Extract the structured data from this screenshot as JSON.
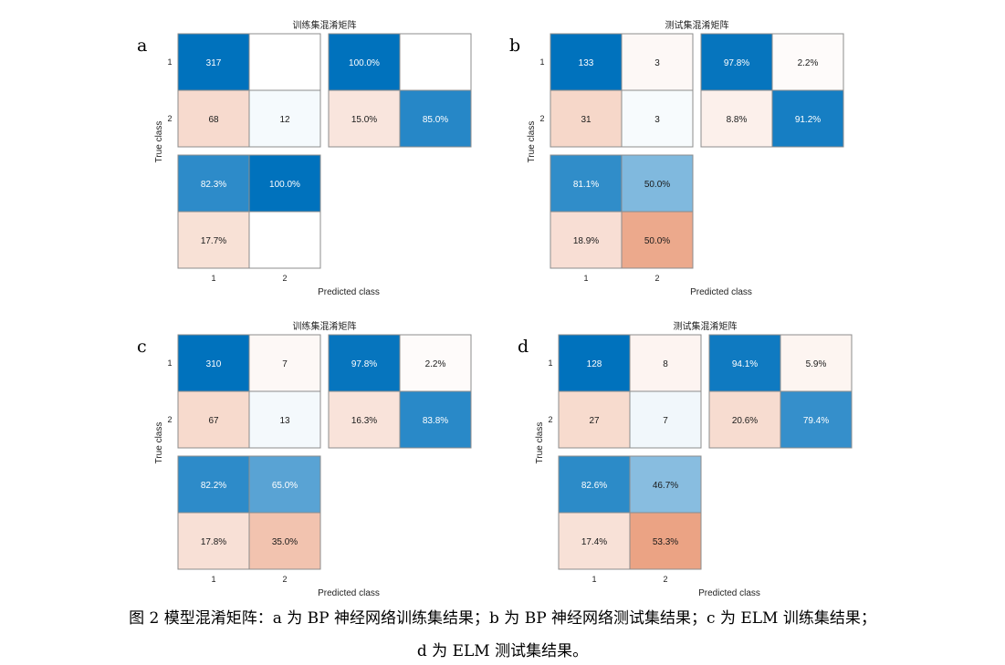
{
  "figure": {
    "caption_line1": "图 2  模型混淆矩阵：a 为 BP 神经网络训练集结果；b 为 BP 神经网络测试集结果；c 为 ELM 训练集结果；",
    "caption_line2": "d 为 ELM 测试集结果。",
    "colors": {
      "blue_dark": "#0072BD",
      "blue_medium": "#4A9AD6",
      "blue_light": "#D8ECF8",
      "orange_dark": "#D95319",
      "orange_medium": "#F0A083",
      "orange_light": "#FCE0D3",
      "border": "#8c8c8c"
    }
  },
  "chart_data": [
    {
      "type": "heatmap",
      "panel_label": "a",
      "title": "训练集混淆矩阵",
      "xlabel": "Predicted class",
      "ylabel": "True class",
      "class_labels": [
        "1",
        "2"
      ],
      "matrix": [
        [
          317,
          0
        ],
        [
          68,
          12
        ]
      ],
      "cell_text": [
        [
          "317",
          ""
        ],
        [
          "68",
          "12"
        ]
      ],
      "row_summary": [
        [
          "100.0%",
          ""
        ],
        [
          "15.0%",
          "85.0%"
        ]
      ],
      "column_summary": [
        [
          "82.3%",
          "100.0%"
        ],
        [
          "17.7%",
          ""
        ]
      ]
    },
    {
      "type": "heatmap",
      "panel_label": "b",
      "title": "测试集混淆矩阵",
      "xlabel": "Predicted class",
      "ylabel": "True class",
      "class_labels": [
        "1",
        "2"
      ],
      "matrix": [
        [
          133,
          3
        ],
        [
          31,
          3
        ]
      ],
      "cell_text": [
        [
          "133",
          "3"
        ],
        [
          "31",
          "3"
        ]
      ],
      "row_summary": [
        [
          "97.8%",
          "2.2%"
        ],
        [
          "8.8%",
          "91.2%"
        ]
      ],
      "column_summary": [
        [
          "81.1%",
          "50.0%"
        ],
        [
          "18.9%",
          "50.0%"
        ]
      ]
    },
    {
      "type": "heatmap",
      "panel_label": "c",
      "title": "训练集混淆矩阵",
      "xlabel": "Predicted class",
      "ylabel": "True class",
      "class_labels": [
        "1",
        "2"
      ],
      "matrix": [
        [
          310,
          7
        ],
        [
          67,
          13
        ]
      ],
      "cell_text": [
        [
          "310",
          "7"
        ],
        [
          "67",
          "13"
        ]
      ],
      "row_summary": [
        [
          "97.8%",
          "2.2%"
        ],
        [
          "16.3%",
          "83.8%"
        ]
      ],
      "column_summary": [
        [
          "82.2%",
          "65.0%"
        ],
        [
          "17.8%",
          "35.0%"
        ]
      ]
    },
    {
      "type": "heatmap",
      "panel_label": "d",
      "title": "测试集混淆矩阵",
      "xlabel": "Predicted class",
      "ylabel": "True class",
      "class_labels": [
        "1",
        "2"
      ],
      "matrix": [
        [
          128,
          8
        ],
        [
          27,
          7
        ]
      ],
      "cell_text": [
        [
          "128",
          "8"
        ],
        [
          "27",
          "7"
        ]
      ],
      "row_summary": [
        [
          "94.1%",
          "5.9%"
        ],
        [
          "20.6%",
          "79.4%"
        ]
      ],
      "column_summary": [
        [
          "82.6%",
          "46.7%"
        ],
        [
          "17.4%",
          "53.3%"
        ]
      ]
    }
  ]
}
